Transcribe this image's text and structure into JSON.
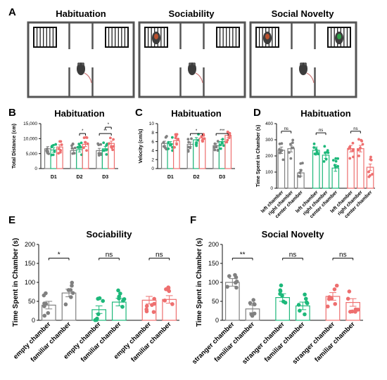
{
  "panel_letters": {
    "A": "A",
    "B": "B",
    "C": "C",
    "D": "D",
    "E": "E",
    "F": "F"
  },
  "arena_titles": [
    "Habituation",
    "Sociability",
    "Social Novelty"
  ],
  "colors": {
    "gray": "#808080",
    "green": "#1db87a",
    "pink": "#ee6f6f",
    "arena_border": "#555555",
    "bg_arena": "#ffffff"
  },
  "chart_data": [
    {
      "panel": "B",
      "type": "bar",
      "title": "Habituation",
      "ylabel": "Total Distance (cm)",
      "ylim": [
        0,
        15000
      ],
      "yticks": [
        "0",
        "5,000",
        "10,000",
        "15,000"
      ],
      "ytick_values": [
        0,
        5000,
        10000,
        15000
      ],
      "categories": [
        "D1",
        "D2",
        "D3"
      ],
      "series": [
        {
          "color": "gray",
          "values": [
            6600,
            6000,
            6000
          ]
        },
        {
          "color": "green",
          "values": [
            6200,
            6300,
            6600
          ]
        },
        {
          "color": "pink",
          "values": [
            7200,
            8100,
            8400
          ]
        }
      ],
      "significance": [
        {
          "group": 1,
          "from": 1,
          "to": 2,
          "label": "*"
        },
        {
          "group": 2,
          "from": 0,
          "to": 2,
          "label": "**"
        },
        {
          "group": 2,
          "from": 1,
          "to": 2,
          "label": "*"
        }
      ]
    },
    {
      "panel": "C",
      "type": "bar",
      "title": "Habituation",
      "ylabel": "Velocity (cm/s)",
      "ylim": [
        0,
        10
      ],
      "yticks": [
        "0",
        "2",
        "4",
        "6",
        "8",
        "10"
      ],
      "ytick_values": [
        0,
        2,
        4,
        6,
        8,
        10
      ],
      "categories": [
        "D1",
        "D2",
        "D3"
      ],
      "series": [
        {
          "color": "gray",
          "values": [
            5.6,
            5.4,
            5.1
          ]
        },
        {
          "color": "green",
          "values": [
            5.5,
            6.4,
            6.0
          ]
        },
        {
          "color": "pink",
          "values": [
            6.2,
            6.8,
            7.4
          ]
        }
      ],
      "significance": [
        {
          "group": 1,
          "from": 0,
          "to": 2,
          "label": "*"
        },
        {
          "group": 2,
          "from": 0,
          "to": 2,
          "label": "***"
        }
      ]
    },
    {
      "panel": "D",
      "type": "bar",
      "title": "Habituation",
      "ylabel": "Time Spent in Chamber (s)",
      "ylim": [
        0,
        400
      ],
      "yticks": [
        "0",
        "100",
        "200",
        "300",
        "400"
      ],
      "ytick_values": [
        0,
        100,
        200,
        300,
        400
      ],
      "categories": [
        "left chamber",
        "right chamber",
        "center chamber",
        "left chamber",
        "right chamber",
        "center chamber",
        "left chamber",
        "right chamber",
        "center chamber"
      ],
      "values": [
        235,
        245,
        95,
        235,
        205,
        125,
        245,
        245,
        130
      ],
      "colors": [
        "gray",
        "gray",
        "gray",
        "green",
        "green",
        "green",
        "pink",
        "pink",
        "pink"
      ],
      "significance": [
        {
          "from": 0,
          "to": 1,
          "label": "ns"
        },
        {
          "from": 3,
          "to": 4,
          "label": "ns"
        },
        {
          "from": 6,
          "to": 7,
          "label": "ns"
        }
      ]
    },
    {
      "panel": "E",
      "type": "bar",
      "title": "Sociability",
      "ylabel": "Time Spent in Chamber (s)",
      "ylim": [
        0,
        200
      ],
      "yticks": [
        "0",
        "50",
        "100",
        "150",
        "200"
      ],
      "ytick_values": [
        0,
        50,
        100,
        150,
        200
      ],
      "categories": [
        "empty chamber",
        "familiar chamber",
        "empty chamber",
        "familiar chamber",
        "empty chamber",
        "familiar chamber"
      ],
      "values": [
        40,
        72,
        28,
        48,
        53,
        55
      ],
      "colors": [
        "gray",
        "gray",
        "green",
        "green",
        "pink",
        "pink"
      ],
      "significance": [
        {
          "from": 0,
          "to": 1,
          "label": "*"
        },
        {
          "from": 2,
          "to": 3,
          "label": "ns"
        },
        {
          "from": 4,
          "to": 5,
          "label": "ns"
        }
      ]
    },
    {
      "panel": "F",
      "type": "bar",
      "title": "Social Novelty",
      "ylabel": "Time Spent in Chamber (s)",
      "ylim": [
        0,
        200
      ],
      "yticks": [
        "0",
        "50",
        "100",
        "150",
        "200"
      ],
      "ytick_values": [
        0,
        50,
        100,
        150,
        200
      ],
      "categories": [
        "stranger chamber",
        "familiar chamber",
        "stranger chamber",
        "familiar chamber",
        "stranger chamber",
        "familiar chamber"
      ],
      "values": [
        100,
        30,
        60,
        38,
        63,
        47
      ],
      "colors": [
        "gray",
        "gray",
        "green",
        "green",
        "pink",
        "pink"
      ],
      "significance": [
        {
          "from": 0,
          "to": 1,
          "label": "**"
        },
        {
          "from": 2,
          "to": 3,
          "label": "ns"
        },
        {
          "from": 4,
          "to": 5,
          "label": "ns"
        }
      ]
    }
  ]
}
